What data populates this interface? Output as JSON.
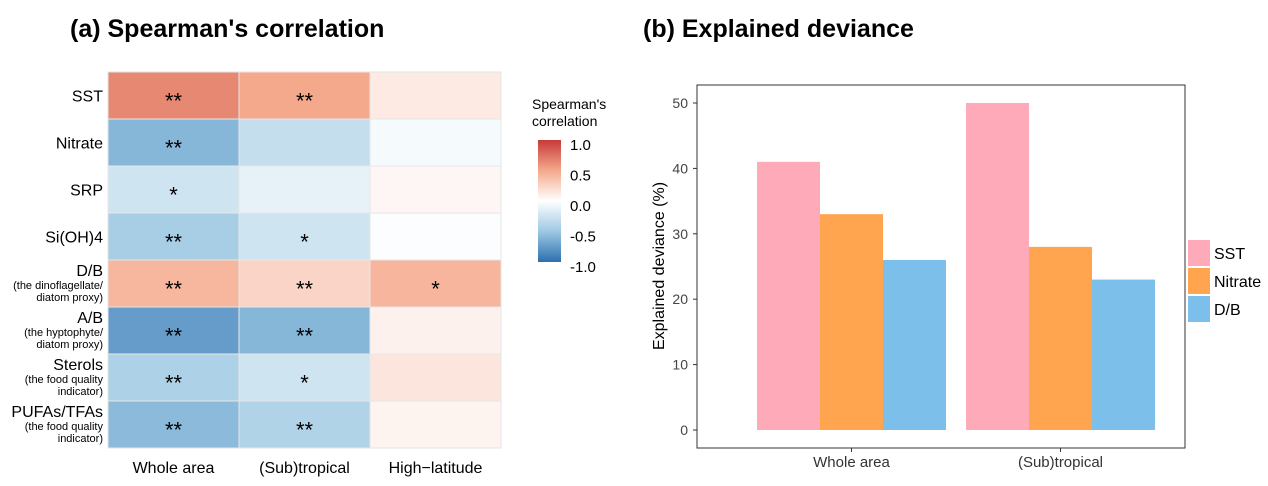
{
  "chart_data": [
    {
      "type": "heatmap",
      "title": "(a) Spearman's correlation",
      "columns": [
        "Whole area",
        "(Sub)tropical",
        "High−latitude"
      ],
      "rows": [
        {
          "label": "SST",
          "sub": "",
          "values": [
            0.65,
            0.5,
            0.12
          ],
          "sig": [
            "**",
            "**",
            ""
          ]
        },
        {
          "label": "Nitrate",
          "sub": "",
          "values": [
            -0.6,
            -0.3,
            -0.05
          ],
          "sig": [
            "**",
            "",
            ""
          ]
        },
        {
          "label": "SRP",
          "sub": "",
          "values": [
            -0.25,
            -0.12,
            0.05
          ],
          "sig": [
            "*",
            "",
            ""
          ]
        },
        {
          "label": "Si(OH)4",
          "sub": "",
          "values": [
            -0.45,
            -0.25,
            -0.02
          ],
          "sig": [
            "**",
            "*",
            ""
          ]
        },
        {
          "label": "D/B",
          "sub": "(the dinoflagellate/|diatom proxy)",
          "values": [
            0.42,
            0.25,
            0.43
          ],
          "sig": [
            "**",
            "**",
            "*"
          ]
        },
        {
          "label": "A/B",
          "sub": "(the hyptophyte/|diatom proxy)",
          "values": [
            -0.75,
            -0.6,
            0.08
          ],
          "sig": [
            "**",
            "**",
            ""
          ]
        },
        {
          "label": "Sterols",
          "sub": "(the food quality|indicator)",
          "values": [
            -0.42,
            -0.25,
            0.15
          ],
          "sig": [
            "**",
            "*",
            ""
          ]
        },
        {
          "label": "PUFAs/TFAs",
          "sub": "(the food quality|indicator)",
          "values": [
            -0.58,
            -0.4,
            0.07
          ],
          "sig": [
            "**",
            "**",
            ""
          ]
        }
      ],
      "legend": {
        "title": [
          "Spearman's",
          "correlation"
        ],
        "ticks": [
          "1.0",
          "0.5",
          "0.0",
          "-0.5",
          "-1.0"
        ],
        "range": [
          -1,
          1
        ],
        "colors": {
          "low": "#2166ac",
          "mid": "#ffffff",
          "high": "#c73a3a"
        }
      }
    },
    {
      "type": "bar",
      "title": "(b) Explained deviance",
      "ylabel": "Explained deviance (%)",
      "xlabel": "",
      "categories": [
        "Whole area",
        "(Sub)tropical"
      ],
      "series": [
        {
          "name": "SST",
          "color": "#ffaab8",
          "values": [
            41,
            50
          ]
        },
        {
          "name": "Nitrate",
          "color": "#ffa54f",
          "values": [
            33,
            28
          ]
        },
        {
          "name": "D/B",
          "color": "#7dbfeb",
          "values": [
            26,
            23
          ]
        }
      ],
      "ylim": [
        0,
        50
      ],
      "yticks": [
        "0",
        "10",
        "20",
        "30",
        "40",
        "50"
      ],
      "grid": false,
      "legend_position": "right"
    }
  ]
}
